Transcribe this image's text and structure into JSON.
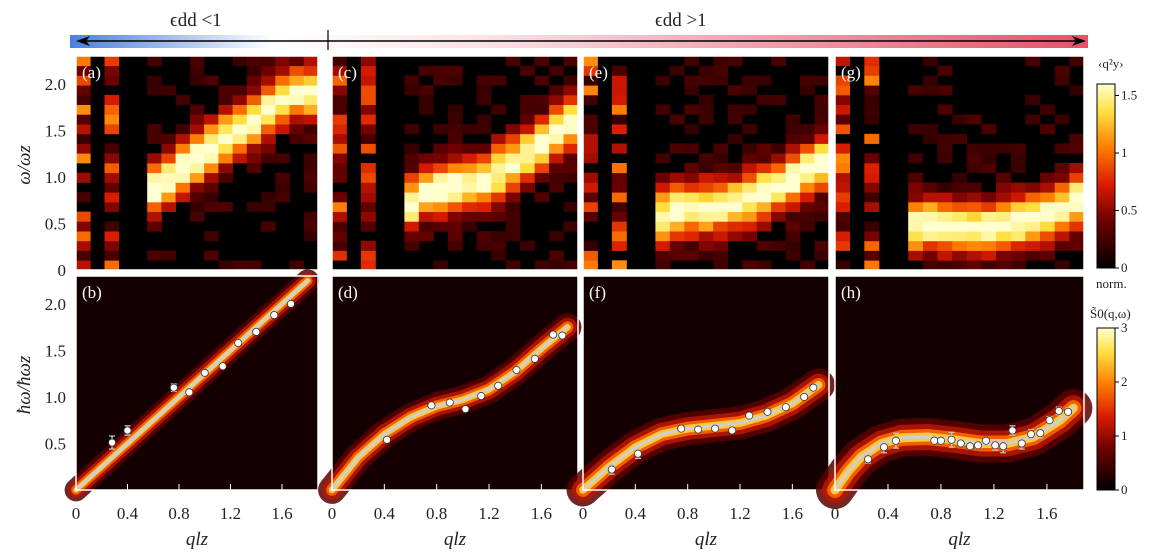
{
  "top": {
    "left_label": "ϵdd <1",
    "right_label": "ϵdd >1",
    "colors": {
      "blue": "#4a7fe0",
      "red": "#e8506a"
    }
  },
  "colorbars": {
    "top": {
      "title": "‹q²y›",
      "ticks": [
        "1.5",
        "1",
        "0.5",
        "0"
      ],
      "range": [
        0,
        1.6
      ]
    },
    "middle_label": "norm.",
    "bottom": {
      "title": "S̃0(q,ω)",
      "ticks": [
        "3",
        "2",
        "1",
        "0"
      ],
      "range": [
        0,
        3
      ]
    }
  },
  "chart_data": [
    {
      "type": "heatmap",
      "panel": "(a)",
      "ylabel": "ω/ωz",
      "yticks": [
        "2.0",
        "1.5",
        "1.0",
        "0.5",
        "0"
      ],
      "ylim": [
        0,
        2.3
      ],
      "xlim": [
        0,
        1.8
      ],
      "description_values": {
        "ridge": [
          [
            0.3,
            0.5
          ],
          [
            0.6,
            0.9
          ],
          [
            0.9,
            1.2
          ],
          [
            1.2,
            1.5
          ],
          [
            1.6,
            1.9
          ]
        ]
      }
    },
    {
      "type": "heatmap",
      "panel": "(c)",
      "ylim": [
        0,
        2.3
      ],
      "xlim": [
        0,
        1.8
      ],
      "description_values": {
        "ridge": [
          [
            0.3,
            0.4
          ],
          [
            0.7,
            0.85
          ],
          [
            1.1,
            0.95
          ],
          [
            1.5,
            1.3
          ],
          [
            1.75,
            1.6
          ]
        ]
      }
    },
    {
      "type": "heatmap",
      "panel": "(e)",
      "ylim": [
        0,
        2.3
      ],
      "xlim": [
        0,
        1.8
      ],
      "description_values": {
        "ridge": [
          [
            0.3,
            0.4
          ],
          [
            0.7,
            0.65
          ],
          [
            1.1,
            0.7
          ],
          [
            1.5,
            0.95
          ],
          [
            1.75,
            1.15
          ]
        ]
      }
    },
    {
      "type": "heatmap",
      "panel": "(g)",
      "ylim": [
        0,
        2.3
      ],
      "xlim": [
        0,
        1.8
      ],
      "description_values": {
        "ridge": [
          [
            0.3,
            0.4
          ],
          [
            0.7,
            0.5
          ],
          [
            1.1,
            0.45
          ],
          [
            1.5,
            0.55
          ],
          [
            1.75,
            0.75
          ]
        ]
      }
    },
    {
      "type": "scatter",
      "panel": "(b)",
      "ylabel": "ħω/ħωz",
      "xlabel": "qlz",
      "yticks": [
        "2.0",
        "1.5",
        "1.0",
        "0.5"
      ],
      "xticks": [
        "0",
        "0.4",
        "0.8",
        "1.2",
        "1.6"
      ],
      "xlim": [
        0,
        1.88
      ],
      "ylim": [
        0,
        2.3
      ],
      "x": [
        0.28,
        0.4,
        0.76,
        0.88,
        1.0,
        1.14,
        1.26,
        1.4,
        1.54,
        1.67
      ],
      "y": [
        0.51,
        0.64,
        1.1,
        1.05,
        1.26,
        1.33,
        1.58,
        1.7,
        1.88,
        2.0
      ],
      "yerr": [
        0.07,
        0.05,
        0.04,
        0.02,
        0.02,
        0.02,
        0.02,
        0.02,
        0.02,
        0.02
      ],
      "theory": [
        [
          0,
          0
        ],
        [
          0.4,
          0.5
        ],
        [
          0.8,
          1.0
        ],
        [
          1.2,
          1.5
        ],
        [
          1.6,
          2.0
        ],
        [
          1.8,
          2.25
        ]
      ]
    },
    {
      "type": "scatter",
      "panel": "(d)",
      "xlabel": "qlz",
      "xticks": [
        "0",
        "0.4",
        "0.8",
        "1.2",
        "1.6"
      ],
      "xlim": [
        0,
        1.88
      ],
      "ylim": [
        0,
        2.3
      ],
      "x": [
        0.42,
        0.76,
        0.9,
        1.02,
        1.14,
        1.27,
        1.41,
        1.55,
        1.69,
        1.76
      ],
      "y": [
        0.54,
        0.91,
        0.94,
        0.87,
        1.01,
        1.12,
        1.29,
        1.41,
        1.67,
        1.66
      ],
      "yerr": [
        0.03,
        0.03,
        0.02,
        0.02,
        0.02,
        0.02,
        0.02,
        0.02,
        0.02,
        0.02
      ],
      "theory": [
        [
          0,
          0
        ],
        [
          0.2,
          0.35
        ],
        [
          0.4,
          0.6
        ],
        [
          0.6,
          0.78
        ],
        [
          0.8,
          0.9
        ],
        [
          1.0,
          0.97
        ],
        [
          1.2,
          1.08
        ],
        [
          1.4,
          1.27
        ],
        [
          1.6,
          1.52
        ],
        [
          1.8,
          1.75
        ]
      ]
    },
    {
      "type": "scatter",
      "panel": "(f)",
      "xlabel": "qlz",
      "xticks": [
        "0",
        "0.4",
        "0.8",
        "1.2",
        "1.6"
      ],
      "xlim": [
        0,
        1.88
      ],
      "ylim": [
        0,
        2.3
      ],
      "x": [
        0.22,
        0.42,
        0.75,
        0.88,
        1.01,
        1.14,
        1.27,
        1.41,
        1.55,
        1.69,
        1.76
      ],
      "y": [
        0.22,
        0.39,
        0.66,
        0.65,
        0.66,
        0.64,
        0.8,
        0.84,
        0.89,
        1.0,
        1.1
      ],
      "yerr": [
        0.05,
        0.05,
        0.02,
        0.02,
        0.02,
        0.02,
        0.02,
        0.02,
        0.02,
        0.02,
        0.02
      ],
      "theory": [
        [
          0,
          0
        ],
        [
          0.2,
          0.25
        ],
        [
          0.4,
          0.46
        ],
        [
          0.6,
          0.6
        ],
        [
          0.8,
          0.66
        ],
        [
          1.0,
          0.69
        ],
        [
          1.2,
          0.72
        ],
        [
          1.4,
          0.8
        ],
        [
          1.6,
          0.93
        ],
        [
          1.8,
          1.13
        ]
      ]
    },
    {
      "type": "scatter",
      "panel": "(h)",
      "xlabel": "qlz",
      "xticks": [
        "0",
        "0.4",
        "0.8",
        "1.2",
        "1.6"
      ],
      "xlim": [
        0,
        1.88
      ],
      "ylim": [
        0,
        2.3
      ],
      "x": [
        0.25,
        0.37,
        0.46,
        0.75,
        0.8,
        0.88,
        0.95,
        1.02,
        1.08,
        1.14,
        1.21,
        1.27,
        1.34,
        1.41,
        1.48,
        1.55,
        1.62,
        1.69,
        1.76
      ],
      "y": [
        0.33,
        0.46,
        0.53,
        0.53,
        0.53,
        0.54,
        0.5,
        0.47,
        0.48,
        0.53,
        0.48,
        0.47,
        0.64,
        0.5,
        0.6,
        0.61,
        0.75,
        0.85,
        0.84
      ],
      "yerr": [
        0.04,
        0.06,
        0.08,
        0.03,
        0.03,
        0.08,
        0.03,
        0.03,
        0.03,
        0.03,
        0.05,
        0.07,
        0.05,
        0.06,
        0.05,
        0.05,
        0.04,
        0.04,
        0.04
      ],
      "theory": [
        [
          0,
          0
        ],
        [
          0.1,
          0.2
        ],
        [
          0.2,
          0.36
        ],
        [
          0.35,
          0.5
        ],
        [
          0.5,
          0.56
        ],
        [
          0.7,
          0.57
        ],
        [
          0.9,
          0.54
        ],
        [
          1.1,
          0.5
        ],
        [
          1.3,
          0.5
        ],
        [
          1.5,
          0.57
        ],
        [
          1.7,
          0.75
        ],
        [
          1.8,
          0.88
        ]
      ]
    }
  ]
}
